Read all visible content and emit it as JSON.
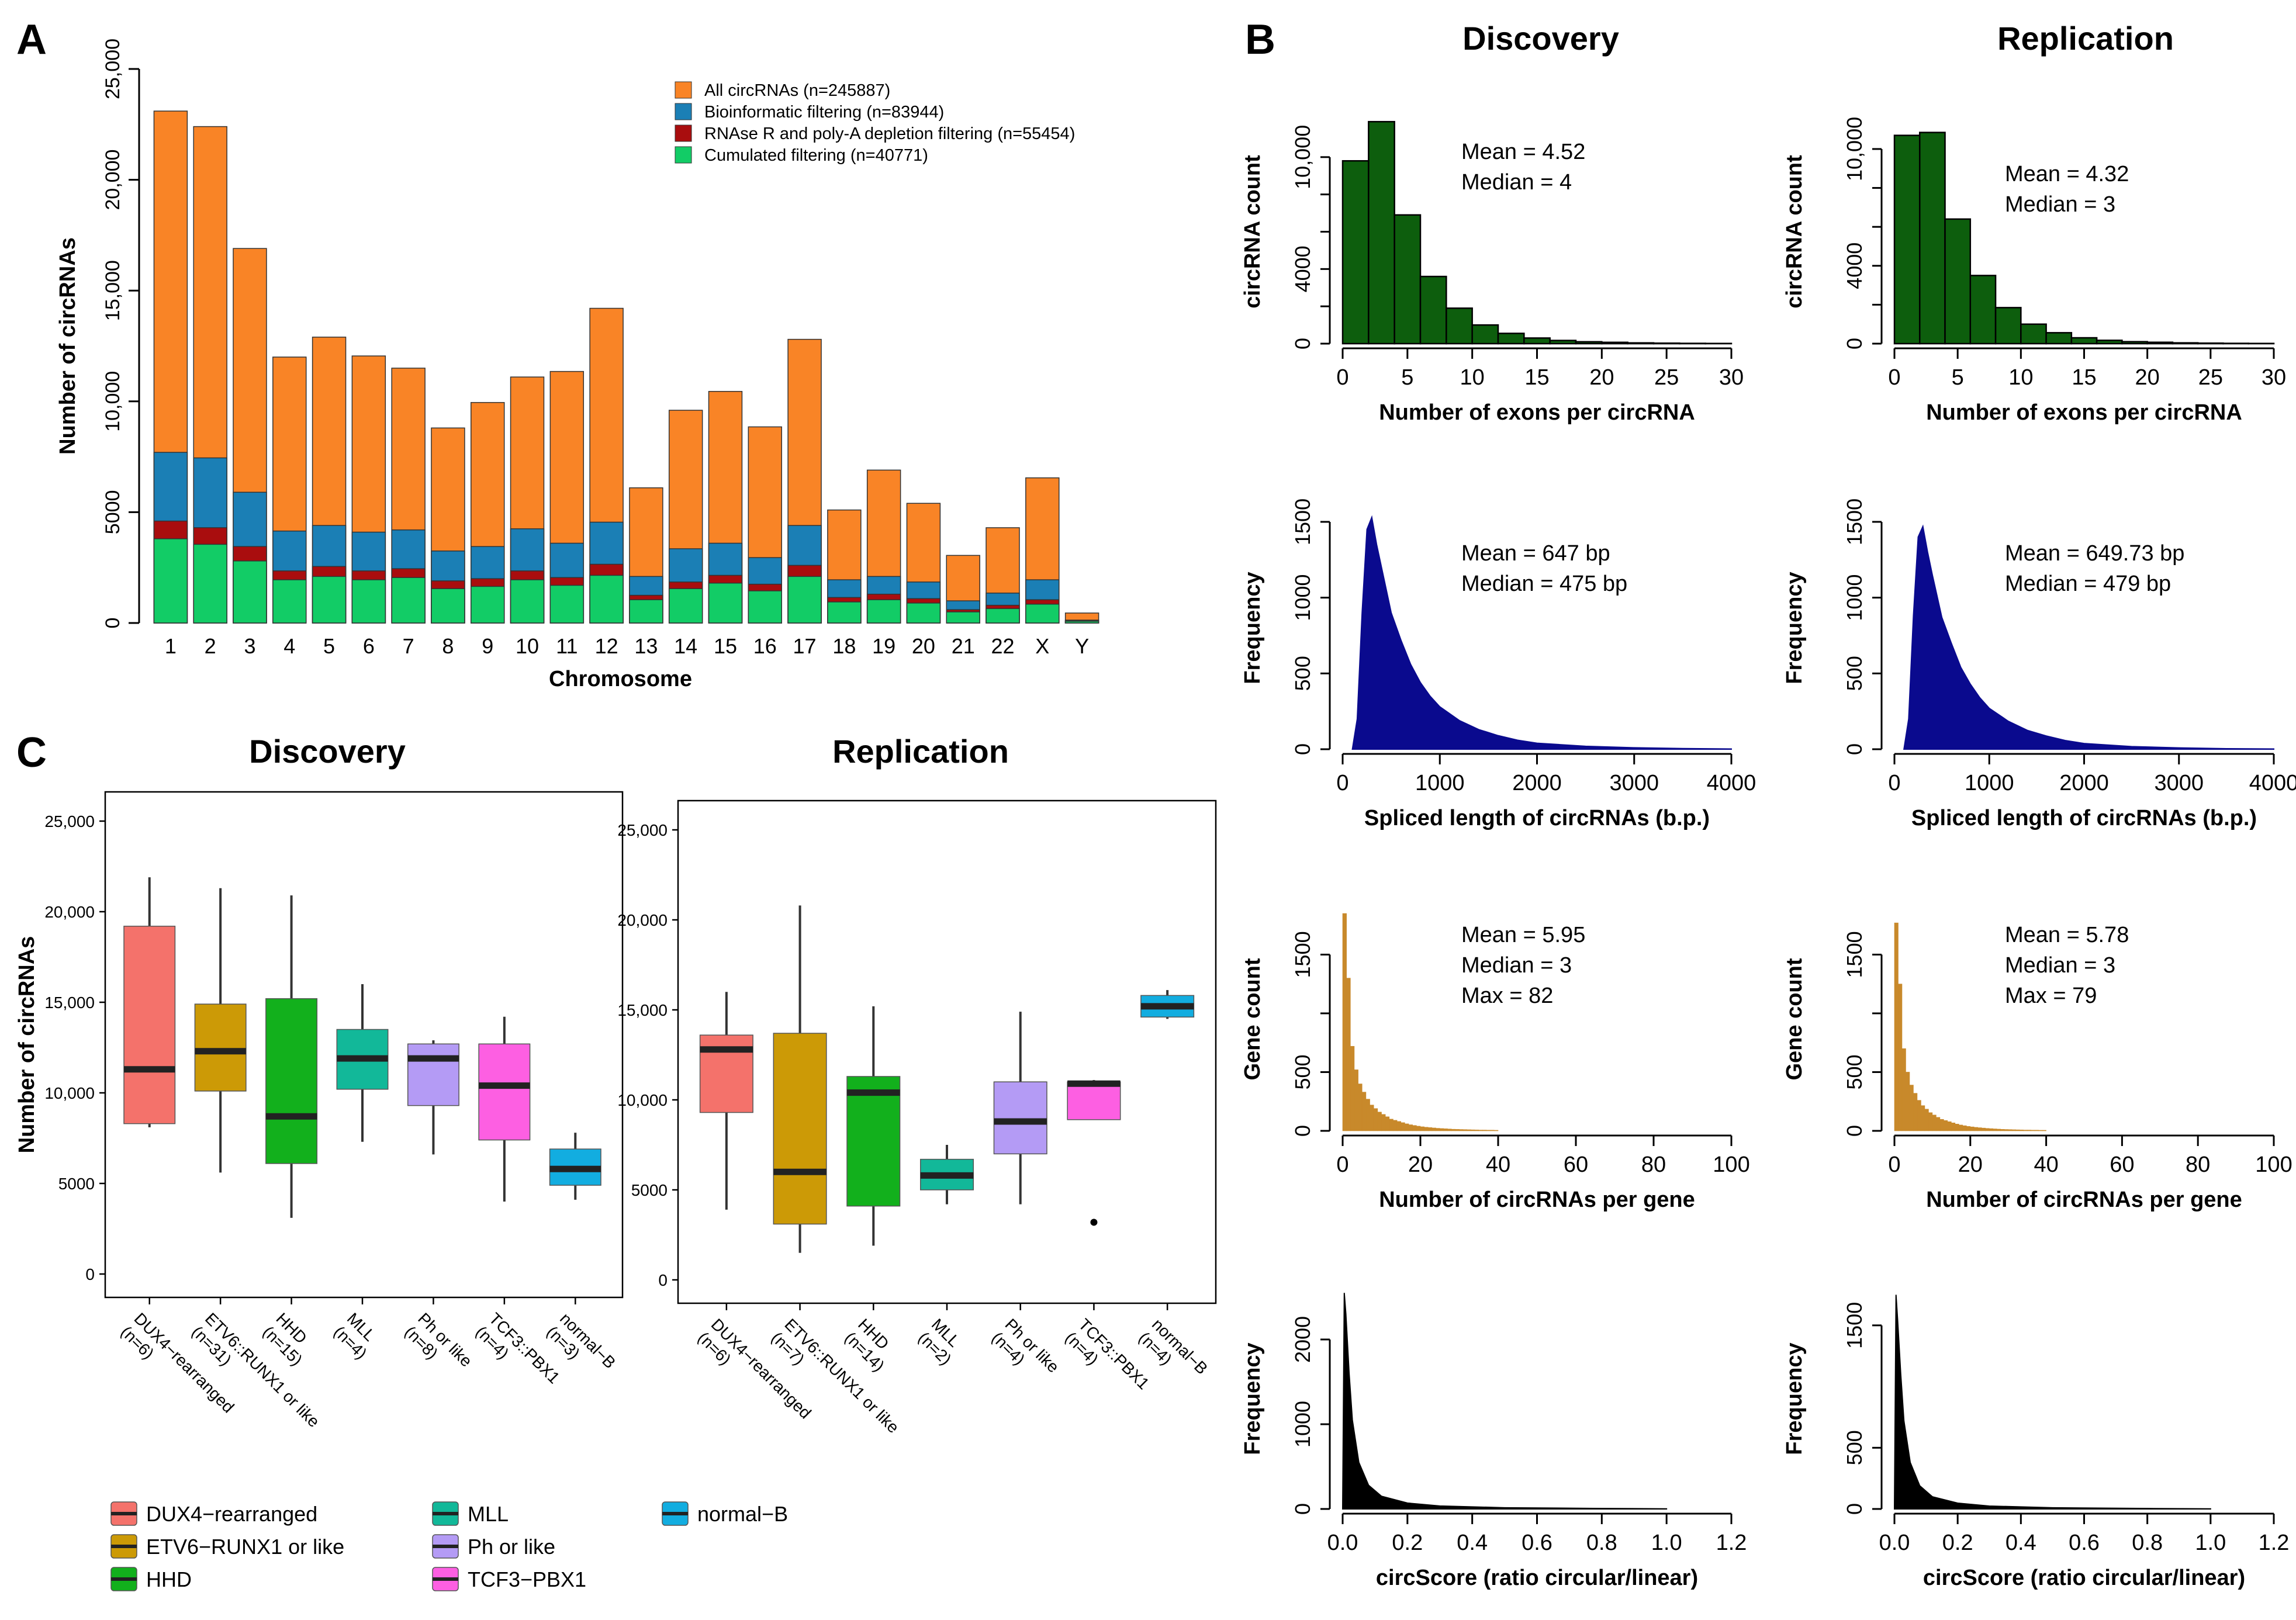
{
  "panels": {
    "A": "A",
    "B": "B",
    "C": "C"
  },
  "colors": {
    "all": "#F98426",
    "bio": "#1B7FB5",
    "rnase": "#A90D0E",
    "cum": "#12CC66",
    "green_hist": "#0D5E0D",
    "blue_hist": "#0A0A8E",
    "orange_hist": "#C8892B",
    "black_hist": "#000000",
    "DUX4": "#F4726B",
    "ETV6": "#CC9A06",
    "HHD": "#12B01C",
    "MLL": "#12B899",
    "Ph": "#B49BF5",
    "TCF3": "#FD5FE2",
    "normalB": "#12ADE0"
  },
  "chart_data": [
    {
      "id": "A",
      "type": "bar",
      "title": "",
      "xlabel": "Chromosome",
      "ylabel": "Number of circRNAs",
      "ylim": [
        0,
        25000
      ],
      "yticks": [
        0,
        5000,
        10000,
        15000,
        20000,
        25000
      ],
      "ytick_labels": [
        "0",
        "5000",
        "10,000",
        "15,000",
        "20,000",
        "25,000"
      ],
      "categories": [
        "1",
        "2",
        "3",
        "4",
        "5",
        "6",
        "7",
        "8",
        "9",
        "10",
        "11",
        "12",
        "13",
        "14",
        "15",
        "16",
        "17",
        "18",
        "19",
        "20",
        "21",
        "22",
        "X",
        "Y"
      ],
      "series": [
        {
          "name": "All circRNAs (n=245887)",
          "color": "#F98426",
          "values": [
            23100,
            22400,
            16900,
            12000,
            12900,
            12050,
            11500,
            8800,
            9950,
            11100,
            11350,
            14200,
            6100,
            9600,
            10450,
            8850,
            12800,
            5100,
            6900,
            5400,
            3050,
            4300,
            6550,
            450
          ]
        },
        {
          "name": "Bioinformatic filtering (n=83944)",
          "color": "#1B7FB5",
          "values": [
            7700,
            7450,
            5900,
            4150,
            4400,
            4100,
            4200,
            3250,
            3450,
            4250,
            3600,
            4550,
            2100,
            3350,
            3600,
            2950,
            4400,
            1950,
            2100,
            1850,
            1000,
            1350,
            1950,
            130
          ]
        },
        {
          "name": "RNAse R and poly-A depletion filtering (n=55454)",
          "color": "#A90D0E",
          "values": [
            4600,
            4300,
            3450,
            2350,
            2550,
            2350,
            2450,
            1900,
            2000,
            2350,
            2050,
            2650,
            1250,
            1850,
            2150,
            1750,
            2600,
            1150,
            1300,
            1100,
            600,
            800,
            1050,
            100
          ]
        },
        {
          "name": "Cumulated filtering (n=40771)",
          "color": "#12CC66",
          "values": [
            3800,
            3550,
            2800,
            1950,
            2100,
            1950,
            2050,
            1550,
            1650,
            1950,
            1700,
            2150,
            1050,
            1550,
            1800,
            1450,
            2100,
            950,
            1050,
            900,
            500,
            650,
            850,
            80
          ]
        }
      ]
    },
    {
      "id": "B1",
      "type": "bar",
      "title": "Discovery",
      "xlabel": "Number of exons per circRNA",
      "ylabel": "circRNA count",
      "color": "#0D5E0D",
      "xlim": [
        0,
        30
      ],
      "ylim": [
        0,
        12000
      ],
      "bin_width": 2,
      "xticks": [
        0,
        5,
        10,
        15,
        20,
        25,
        30
      ],
      "yticks": [
        0,
        4000,
        10000
      ],
      "ytick_labels": [
        "0",
        "4000",
        "10,000"
      ],
      "ytick_minor": [
        2000,
        6000,
        8000
      ],
      "values": [
        9800,
        11900,
        6900,
        3600,
        1900,
        1000,
        550,
        300,
        170,
        100,
        70,
        40,
        25,
        15,
        10
      ],
      "annotations": [
        "Mean = 4.52",
        "Median = 4"
      ]
    },
    {
      "id": "B2",
      "type": "bar",
      "title": "Replication",
      "xlabel": "Number of exons per circRNA",
      "ylabel": "circRNA count",
      "color": "#0D5E0D",
      "xlim": [
        0,
        30
      ],
      "ylim": [
        0,
        11500
      ],
      "bin_width": 2,
      "xticks": [
        0,
        5,
        10,
        15,
        20,
        25,
        30
      ],
      "yticks": [
        0,
        4000,
        10000
      ],
      "ytick_labels": [
        "0",
        "4000",
        "10,000"
      ],
      "ytick_minor": [
        2000,
        6000,
        8000
      ],
      "values": [
        10700,
        10850,
        6400,
        3500,
        1850,
        1000,
        560,
        300,
        170,
        100,
        70,
        40,
        25,
        15,
        10
      ],
      "annotations": [
        "Mean = 4.32",
        "Median = 3"
      ]
    },
    {
      "id": "B3",
      "type": "area",
      "title": "",
      "xlabel": "Spliced length of circRNAs (b.p.)",
      "ylabel": "Frequency",
      "color": "#0A0A8E",
      "xlim": [
        0,
        4000
      ],
      "ylim": [
        0,
        1600
      ],
      "xticks": [
        0,
        1000,
        2000,
        3000,
        4000
      ],
      "yticks": [
        0,
        500,
        1000,
        1500
      ],
      "ytick_labels": [
        "0",
        "500",
        "1000",
        "1500"
      ],
      "x": [
        100,
        150,
        200,
        250,
        300,
        350,
        400,
        500,
        600,
        700,
        800,
        900,
        1000,
        1200,
        1400,
        1600,
        1800,
        2000,
        2500,
        3000,
        3500,
        4000
      ],
      "values": [
        0,
        200,
        900,
        1450,
        1530,
        1350,
        1200,
        900,
        720,
        560,
        440,
        350,
        280,
        190,
        130,
        90,
        60,
        40,
        20,
        10,
        5,
        2
      ],
      "annotations": [
        "Mean = 647 bp",
        "Median = 475 bp"
      ]
    },
    {
      "id": "B4",
      "type": "area",
      "title": "",
      "xlabel": "Spliced length of circRNAs (b.p.)",
      "ylabel": "Frequency",
      "color": "#0A0A8E",
      "xlim": [
        0,
        4000
      ],
      "ylim": [
        0,
        1600
      ],
      "xticks": [
        0,
        1000,
        2000,
        3000,
        4000
      ],
      "yticks": [
        0,
        500,
        1000,
        1500
      ],
      "ytick_labels": [
        "0",
        "500",
        "1000",
        "1500"
      ],
      "x": [
        100,
        150,
        200,
        250,
        300,
        350,
        400,
        500,
        600,
        700,
        800,
        900,
        1000,
        1200,
        1400,
        1600,
        1800,
        2000,
        2500,
        3000,
        3500,
        4000
      ],
      "values": [
        0,
        200,
        880,
        1400,
        1470,
        1300,
        1150,
        870,
        700,
        540,
        430,
        340,
        270,
        185,
        125,
        88,
        58,
        38,
        18,
        9,
        4,
        2
      ],
      "annotations": [
        "Mean = 649.73 bp",
        "Median = 479 bp"
      ]
    },
    {
      "id": "B5",
      "type": "bar",
      "title": "",
      "xlabel": "Number of circRNAs per gene",
      "ylabel": "Gene count",
      "color": "#C8892B",
      "xlim": [
        0,
        100
      ],
      "ylim": [
        0,
        1900
      ],
      "bin_width": 1,
      "xticks": [
        0,
        20,
        40,
        60,
        80,
        100
      ],
      "yticks": [
        0,
        500,
        1500
      ],
      "ytick_labels": [
        "0",
        "500",
        "1500"
      ],
      "ytick_minor": [
        1000
      ],
      "values": [
        1850,
        1300,
        720,
        520,
        400,
        330,
        270,
        220,
        190,
        160,
        140,
        120,
        100,
        90,
        80,
        70,
        60,
        52,
        46,
        40,
        35,
        31,
        28,
        25,
        22,
        20,
        18,
        16,
        14,
        13,
        12,
        11,
        10,
        9,
        8,
        7,
        7,
        6,
        6,
        5
      ],
      "annotations": [
        "Mean = 5.95",
        "Median = 3",
        "Max = 82"
      ]
    },
    {
      "id": "B6",
      "type": "bar",
      "title": "",
      "xlabel": "Number of circRNAs per gene",
      "ylabel": "Gene count",
      "color": "#C8892B",
      "xlim": [
        0,
        100
      ],
      "ylim": [
        0,
        1900
      ],
      "bin_width": 1,
      "xticks": [
        0,
        20,
        40,
        60,
        80,
        100
      ],
      "yticks": [
        0,
        500,
        1500
      ],
      "ytick_labels": [
        "0",
        "500",
        "1500"
      ],
      "ytick_minor": [
        1000
      ],
      "values": [
        1770,
        1250,
        700,
        500,
        390,
        320,
        260,
        215,
        185,
        155,
        135,
        115,
        98,
        88,
        78,
        68,
        58,
        50,
        44,
        38,
        34,
        30,
        27,
        24,
        21,
        19,
        17,
        15,
        13,
        12,
        11,
        10,
        9,
        8,
        7,
        7,
        6,
        6,
        5,
        5
      ],
      "annotations": [
        "Mean = 5.78",
        "Median = 3",
        "Max = 79"
      ]
    },
    {
      "id": "B7",
      "type": "area",
      "title": "",
      "xlabel": "circScore (ratio circular/linear)",
      "ylabel": "Frequency",
      "color": "#000000",
      "xlim": [
        0,
        1.2
      ],
      "ylim": [
        0,
        2600
      ],
      "xticks": [
        0.0,
        0.2,
        0.4,
        0.6,
        0.8,
        1.0,
        1.2
      ],
      "xtick_labels": [
        "0.0",
        "0.2",
        "0.4",
        "0.6",
        "0.8",
        "1.0",
        "1.2"
      ],
      "yticks": [
        0,
        1000,
        2000
      ],
      "ytick_labels": [
        "0",
        "1000",
        "2000"
      ],
      "x": [
        0.0,
        0.005,
        0.01,
        0.02,
        0.03,
        0.05,
        0.08,
        0.12,
        0.2,
        0.3,
        0.5,
        0.8,
        1.0
      ],
      "values": [
        0,
        2550,
        2300,
        1600,
        1050,
        550,
        280,
        150,
        70,
        35,
        15,
        6,
        2
      ],
      "annotations": []
    },
    {
      "id": "B8",
      "type": "area",
      "title": "",
      "xlabel": "circScore (ratio circular/linear)",
      "ylabel": "Frequency",
      "color": "#000000",
      "xlim": [
        0,
        1.2
      ],
      "ylim": [
        0,
        1800
      ],
      "xticks": [
        0.0,
        0.2,
        0.4,
        0.6,
        0.8,
        1.0,
        1.2
      ],
      "xtick_labels": [
        "0.0",
        "0.2",
        "0.4",
        "0.6",
        "0.8",
        "1.0",
        "1.2"
      ],
      "yticks": [
        0,
        500,
        1500
      ],
      "ytick_labels": [
        "0",
        "500",
        "1500"
      ],
      "x": [
        0.0,
        0.005,
        0.01,
        0.02,
        0.03,
        0.05,
        0.08,
        0.12,
        0.2,
        0.3,
        0.5,
        0.8,
        1.0
      ],
      "values": [
        0,
        1750,
        1550,
        1100,
        720,
        380,
        190,
        100,
        48,
        24,
        10,
        4,
        1
      ],
      "annotations": []
    },
    {
      "id": "C1",
      "type": "box",
      "title": "Discovery",
      "ylabel": "Number of circRNAs",
      "ylim": [
        0,
        25000
      ],
      "yticks": [
        0,
        5000,
        10000,
        15000,
        20000,
        25000
      ],
      "ytick_labels": [
        "0",
        "5000",
        "10,000",
        "15,000",
        "20,000",
        "25,000"
      ],
      "categories": [
        "DUX4−rearranged\n(n=6)",
        "ETV6::RUNX1 or like\n(n=31)",
        "HHD\n(n=15)",
        "MLL\n(n=4)",
        "Ph or like\n(n=8)",
        "TCF3::PBX1\n(n=4)",
        "normal−B\n(n=3)"
      ],
      "boxes": [
        {
          "color": "#F4726B",
          "min": 8100,
          "q1": 8300,
          "median": 11300,
          "q3": 19200,
          "max": 21900,
          "outliers": []
        },
        {
          "color": "#CC9A06",
          "min": 5600,
          "q1": 10100,
          "median": 12300,
          "q3": 14900,
          "max": 21300,
          "outliers": []
        },
        {
          "color": "#12B01C",
          "min": 3100,
          "q1": 6100,
          "median": 8700,
          "q3": 15200,
          "max": 20900,
          "outliers": []
        },
        {
          "color": "#12B899",
          "min": 7300,
          "q1": 10200,
          "median": 11900,
          "q3": 13500,
          "max": 16000,
          "outliers": []
        },
        {
          "color": "#B49BF5",
          "min": 6600,
          "q1": 9300,
          "median": 11900,
          "q3": 12700,
          "max": 12900,
          "outliers": []
        },
        {
          "color": "#FD5FE2",
          "min": 4000,
          "q1": 7400,
          "median": 10400,
          "q3": 12700,
          "max": 14200,
          "outliers": []
        },
        {
          "color": "#12ADE0",
          "min": 4100,
          "q1": 4900,
          "median": 5800,
          "q3": 6900,
          "max": 7800,
          "outliers": []
        }
      ]
    },
    {
      "id": "C2",
      "type": "box",
      "title": "Replication",
      "ylabel": "",
      "ylim": [
        0,
        25000
      ],
      "yticks": [
        0,
        5000,
        10000,
        15000,
        20000,
        25000
      ],
      "ytick_labels": [
        "0",
        "5000",
        "10,000",
        "15,000",
        "20,000",
        "25,000"
      ],
      "categories": [
        "DUX4−rearranged\n(n=6)",
        "ETV6::RUNX1 or like\n(n=7)",
        "HHD\n(n=14)",
        "MLL\n(n=2)",
        "Ph or like\n(n=4)",
        "TCF3::PBX1\n(n=4)",
        "normal−B\n(n=4)"
      ],
      "boxes": [
        {
          "color": "#F4726B",
          "min": 3900,
          "q1": 9300,
          "median": 12800,
          "q3": 13600,
          "max": 16000,
          "outliers": []
        },
        {
          "color": "#CC9A06",
          "min": 1500,
          "q1": 3100,
          "median": 6000,
          "q3": 13700,
          "max": 20800,
          "outliers": []
        },
        {
          "color": "#12B01C",
          "min": 1900,
          "q1": 4100,
          "median": 10400,
          "q3": 11300,
          "max": 15200,
          "outliers": []
        },
        {
          "color": "#12B899",
          "min": 4200,
          "q1": 5000,
          "median": 5800,
          "q3": 6700,
          "max": 7500,
          "outliers": []
        },
        {
          "color": "#B49BF5",
          "min": 4200,
          "q1": 7000,
          "median": 8800,
          "q3": 11000,
          "max": 14900,
          "outliers": []
        },
        {
          "color": "#FD5FE2",
          "min": 8900,
          "q1": 8900,
          "median": 10900,
          "q3": 11000,
          "max": 11100,
          "outliers": [
            3200
          ]
        },
        {
          "color": "#12ADE0",
          "min": 14500,
          "q1": 14600,
          "median": 15200,
          "q3": 15800,
          "max": 16100,
          "outliers": []
        }
      ]
    }
  ],
  "legendA": [
    {
      "label": "All circRNAs (n=245887)",
      "color": "#F98426"
    },
    {
      "label": "Bioinformatic filtering (n=83944)",
      "color": "#1B7FB5"
    },
    {
      "label": "RNAse R and poly-A depletion filtering (n=55454)",
      "color": "#A90D0E"
    },
    {
      "label": "Cumulated filtering (n=40771)",
      "color": "#12CC66"
    }
  ],
  "legendC": [
    {
      "label": "DUX4−rearranged",
      "color": "#F4726B"
    },
    {
      "label": "ETV6−RUNX1 or like",
      "color": "#CC9A06"
    },
    {
      "label": "HHD",
      "color": "#12B01C"
    },
    {
      "label": "MLL",
      "color": "#12B899"
    },
    {
      "label": "Ph or like",
      "color": "#B49BF5"
    },
    {
      "label": "TCF3−PBX1",
      "color": "#FD5FE2"
    },
    {
      "label": "normal−B",
      "color": "#12ADE0"
    }
  ]
}
